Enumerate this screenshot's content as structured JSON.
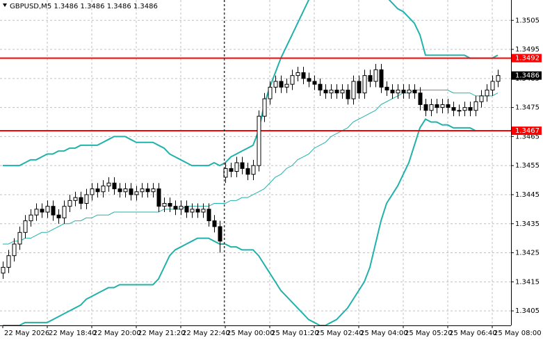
{
  "chart_data": {
    "type": "candlestick",
    "title": "GBPUSD,M5  1.3486 1.3486 1.3486 1.3486",
    "categories": [
      "22 May 2026",
      null,
      null,
      null,
      null,
      null,
      null,
      null,
      "22 May 18:40",
      null,
      null,
      null,
      null,
      null,
      null,
      null,
      "22 May 20:00",
      null,
      null,
      null,
      null,
      null,
      null,
      null,
      "22 May 21:20",
      null,
      null,
      null,
      null,
      null,
      null,
      null,
      "22 May 22:40",
      null,
      null,
      null,
      null,
      null,
      null,
      null,
      "25 May 00:00",
      null,
      null,
      null,
      null,
      null,
      null,
      null,
      "25 May 01:20",
      null,
      null,
      null,
      null,
      null,
      null,
      null,
      "25 May 02:40",
      null,
      null,
      null,
      null,
      null,
      null,
      null,
      "25 May 04:00",
      null,
      null,
      null,
      null,
      null,
      null,
      null,
      "25 May 05:20",
      null,
      null,
      null,
      null,
      null,
      null,
      null,
      "25 May 06:40",
      null,
      null,
      null,
      null,
      null,
      null,
      null,
      "25 May 08:00",
      null
    ],
    "open": [
      1.3418,
      1.342,
      1.3424,
      1.3428,
      1.3432,
      1.3436,
      1.3438,
      1.344,
      1.3439,
      1.3441,
      1.3438,
      1.3437,
      1.3441,
      1.3443,
      1.3444,
      1.3442,
      1.3445,
      1.3447,
      1.3446,
      1.3448,
      1.3449,
      1.3447,
      1.3446,
      1.3447,
      1.3445,
      1.3446,
      1.3447,
      1.3446,
      1.3447,
      1.3441,
      1.3442,
      1.3441,
      1.344,
      1.3441,
      1.3439,
      1.344,
      1.3439,
      1.344,
      1.3436,
      1.3434,
      1.3451,
      1.3454,
      1.3453,
      1.3456,
      1.3454,
      1.3452,
      1.3455,
      1.3472,
      1.3478,
      1.3482,
      1.3484,
      1.3482,
      1.3483,
      1.3486,
      1.3487,
      1.3485,
      1.3484,
      1.3483,
      1.3481,
      1.348,
      1.3481,
      1.348,
      1.3481,
      1.3478,
      1.3484,
      1.348,
      1.3486,
      1.3484,
      1.3488,
      1.3482,
      1.3481,
      1.348,
      1.3481,
      1.348,
      1.3481,
      1.348,
      1.3476,
      1.3474,
      1.3476,
      1.3475,
      1.3476,
      1.3475,
      1.3474,
      1.3474,
      1.3475,
      1.3474,
      1.3477,
      1.3479,
      1.3481,
      1.3484
    ],
    "high": [
      1.3422,
      1.3426,
      1.343,
      1.3434,
      1.3438,
      1.344,
      1.3442,
      1.3442,
      1.3443,
      1.3443,
      1.344,
      1.3443,
      1.3445,
      1.3446,
      1.3446,
      1.3447,
      1.3449,
      1.3449,
      1.345,
      1.3451,
      1.3451,
      1.3449,
      1.3449,
      1.3449,
      1.3448,
      1.3449,
      1.3449,
      1.3449,
      1.3449,
      1.3444,
      1.3444,
      1.3443,
      1.3443,
      1.3443,
      1.3442,
      1.3442,
      1.3442,
      1.3442,
      1.3438,
      1.3436,
      1.3456,
      1.3456,
      1.3458,
      1.3458,
      1.3456,
      1.3457,
      1.3474,
      1.348,
      1.3484,
      1.3486,
      1.3486,
      1.3485,
      1.3488,
      1.3489,
      1.3489,
      1.3487,
      1.3486,
      1.3485,
      1.3483,
      1.3483,
      1.3483,
      1.3483,
      1.3483,
      1.3486,
      1.3486,
      1.3488,
      1.3488,
      1.349,
      1.349,
      1.3484,
      1.3483,
      1.3483,
      1.3483,
      1.3483,
      1.3483,
      1.3482,
      1.3478,
      1.3478,
      1.3478,
      1.3478,
      1.3478,
      1.3477,
      1.3476,
      1.3477,
      1.3477,
      1.3479,
      1.3481,
      1.3483,
      1.3486,
      1.3488
    ],
    "low": [
      1.3416,
      1.3418,
      1.3422,
      1.3426,
      1.343,
      1.3434,
      1.3436,
      1.3437,
      1.3437,
      1.3436,
      1.3435,
      1.3435,
      1.3439,
      1.3441,
      1.344,
      1.344,
      1.3443,
      1.3444,
      1.3444,
      1.3446,
      1.3445,
      1.3444,
      1.3444,
      1.3443,
      1.3443,
      1.3444,
      1.3444,
      1.3444,
      1.3439,
      1.3439,
      1.3439,
      1.3438,
      1.3438,
      1.3437,
      1.3437,
      1.3437,
      1.3437,
      1.3434,
      1.3432,
      1.3425,
      1.3449,
      1.3451,
      1.3451,
      1.3452,
      1.345,
      1.345,
      1.3453,
      1.347,
      1.3476,
      1.348,
      1.348,
      1.348,
      1.3481,
      1.3484,
      1.3483,
      1.3482,
      1.3481,
      1.3479,
      1.3478,
      1.3478,
      1.3478,
      1.3478,
      1.3476,
      1.3476,
      1.3478,
      1.3478,
      1.3482,
      1.3482,
      1.348,
      1.3479,
      1.3478,
      1.3478,
      1.3478,
      1.3478,
      1.3478,
      1.3474,
      1.3472,
      1.3472,
      1.3473,
      1.3473,
      1.3473,
      1.3472,
      1.3472,
      1.3472,
      1.3472,
      1.3472,
      1.3475,
      1.3477,
      1.3479,
      1.3482
    ],
    "close": [
      1.342,
      1.3424,
      1.3428,
      1.3432,
      1.3436,
      1.3438,
      1.344,
      1.3439,
      1.3441,
      1.3438,
      1.3437,
      1.3441,
      1.3443,
      1.3444,
      1.3442,
      1.3445,
      1.3447,
      1.3446,
      1.3448,
      1.3449,
      1.3447,
      1.3446,
      1.3447,
      1.3445,
      1.3446,
      1.3447,
      1.3446,
      1.3447,
      1.3441,
      1.3442,
      1.3441,
      1.344,
      1.3441,
      1.3439,
      1.344,
      1.3439,
      1.344,
      1.3436,
      1.3434,
      1.3429,
      1.3454,
      1.3453,
      1.3456,
      1.3454,
      1.3452,
      1.3455,
      1.3472,
      1.3478,
      1.3482,
      1.3484,
      1.3482,
      1.3483,
      1.3486,
      1.3487,
      1.3485,
      1.3484,
      1.3483,
      1.3481,
      1.348,
      1.3481,
      1.348,
      1.3481,
      1.3478,
      1.3484,
      1.348,
      1.3486,
      1.3484,
      1.3488,
      1.3482,
      1.3481,
      1.348,
      1.3481,
      1.348,
      1.3481,
      1.348,
      1.3476,
      1.3474,
      1.3476,
      1.3475,
      1.3476,
      1.3475,
      1.3474,
      1.3474,
      1.3475,
      1.3474,
      1.3477,
      1.3479,
      1.3481,
      1.3484,
      1.3486
    ],
    "up_color": "#ffffff",
    "down_color": "#000000",
    "overlays": [
      {
        "color": "#20b2aa",
        "width": 2,
        "values": [
          1.3455,
          1.3455,
          1.3455,
          1.3455,
          1.3456,
          1.3457,
          1.3457,
          1.3458,
          1.3459,
          1.3459,
          1.346,
          1.346,
          1.3461,
          1.3461,
          1.3462,
          1.3462,
          1.3462,
          1.3462,
          1.3463,
          1.3464,
          1.3465,
          1.3465,
          1.3465,
          1.3464,
          1.3463,
          1.3463,
          1.3463,
          1.3463,
          1.3462,
          1.3461,
          1.3459,
          1.3458,
          1.3457,
          1.3456,
          1.3455,
          1.3455,
          1.3455,
          1.3455,
          1.3456,
          1.3455,
          1.3456,
          1.3458,
          1.3459,
          1.346,
          1.3461,
          1.3462,
          1.3467,
          1.3476,
          1.3482,
          1.3487,
          1.3492,
          1.3496,
          1.35,
          1.3504,
          1.3508,
          1.3512,
          1.3515,
          1.3517,
          1.3519,
          1.352,
          1.3521,
          1.3521,
          1.3521,
          1.352,
          1.3519,
          1.3518,
          1.3517,
          1.3516,
          1.3515,
          1.3513,
          1.3511,
          1.3509,
          1.3508,
          1.3506,
          1.3504,
          1.35,
          1.3493,
          1.3493,
          1.3493,
          1.3493,
          1.3493,
          1.3493,
          1.3493,
          1.3493,
          1.3492,
          1.3492,
          1.3492,
          1.3492,
          1.3492,
          1.3493
        ]
      },
      {
        "color": "#20b2aa",
        "width": 1,
        "values": [
          1.3428,
          1.3428,
          1.3429,
          1.3429,
          1.343,
          1.343,
          1.3431,
          1.3432,
          1.3432,
          1.3433,
          1.3434,
          1.3435,
          1.3435,
          1.3436,
          1.3436,
          1.3437,
          1.3437,
          1.3438,
          1.3438,
          1.3438,
          1.3439,
          1.3439,
          1.3439,
          1.3439,
          1.3439,
          1.3439,
          1.3439,
          1.3439,
          1.3439,
          1.344,
          1.344,
          1.344,
          1.344,
          1.3441,
          1.3441,
          1.3441,
          1.3441,
          1.3441,
          1.3442,
          1.3442,
          1.3442,
          1.3443,
          1.3443,
          1.3444,
          1.3444,
          1.3445,
          1.3446,
          1.3447,
          1.3449,
          1.3451,
          1.3452,
          1.3454,
          1.3455,
          1.3457,
          1.3458,
          1.3459,
          1.3461,
          1.3462,
          1.3463,
          1.3465,
          1.3466,
          1.3467,
          1.3468,
          1.347,
          1.3471,
          1.3472,
          1.3473,
          1.3474,
          1.3476,
          1.3477,
          1.3478,
          1.3479,
          1.348,
          1.348,
          1.3481,
          1.3481,
          1.3481,
          1.3481,
          1.3481,
          1.3481,
          1.3481,
          1.348,
          1.348,
          1.348,
          1.348,
          1.3479,
          1.3479,
          1.3479,
          1.3479,
          1.348
        ]
      },
      {
        "color": "#20b2aa",
        "width": 2,
        "values": [
          1.34,
          1.34,
          1.34,
          1.34,
          1.3401,
          1.3401,
          1.3401,
          1.3401,
          1.3401,
          1.3402,
          1.3403,
          1.3404,
          1.3405,
          1.3406,
          1.3407,
          1.3409,
          1.341,
          1.3411,
          1.3412,
          1.3413,
          1.3413,
          1.3414,
          1.3414,
          1.3414,
          1.3414,
          1.3414,
          1.3414,
          1.3414,
          1.3416,
          1.342,
          1.3424,
          1.3426,
          1.3427,
          1.3428,
          1.3429,
          1.343,
          1.343,
          1.343,
          1.3429,
          1.3428,
          1.3428,
          1.3427,
          1.3427,
          1.3426,
          1.3426,
          1.3426,
          1.3424,
          1.3421,
          1.3418,
          1.3415,
          1.3412,
          1.341,
          1.3408,
          1.3406,
          1.3404,
          1.3402,
          1.3401,
          1.34,
          1.34,
          1.3401,
          1.3402,
          1.3404,
          1.3406,
          1.3409,
          1.3412,
          1.3415,
          1.342,
          1.3428,
          1.3436,
          1.3442,
          1.3445,
          1.3448,
          1.3452,
          1.3456,
          1.3462,
          1.3468,
          1.3471,
          1.347,
          1.347,
          1.3469,
          1.3469,
          1.3468,
          1.3468,
          1.3468,
          1.3468,
          1.3467,
          1.3467,
          1.3467,
          1.3467,
          1.3467
        ]
      }
    ],
    "hlines": [
      {
        "value": 1.3492,
        "color": "#ff0000"
      },
      {
        "value": 1.3467,
        "color": "#ff0000"
      }
    ],
    "price": 1.3486,
    "ylim": [
      1.34,
      1.3512
    ],
    "yticks": [
      1.3405,
      1.3415,
      1.3425,
      1.3435,
      1.3445,
      1.3455,
      1.3465,
      1.3475,
      1.3485,
      1.3495,
      1.3505
    ],
    "grid": true
  }
}
